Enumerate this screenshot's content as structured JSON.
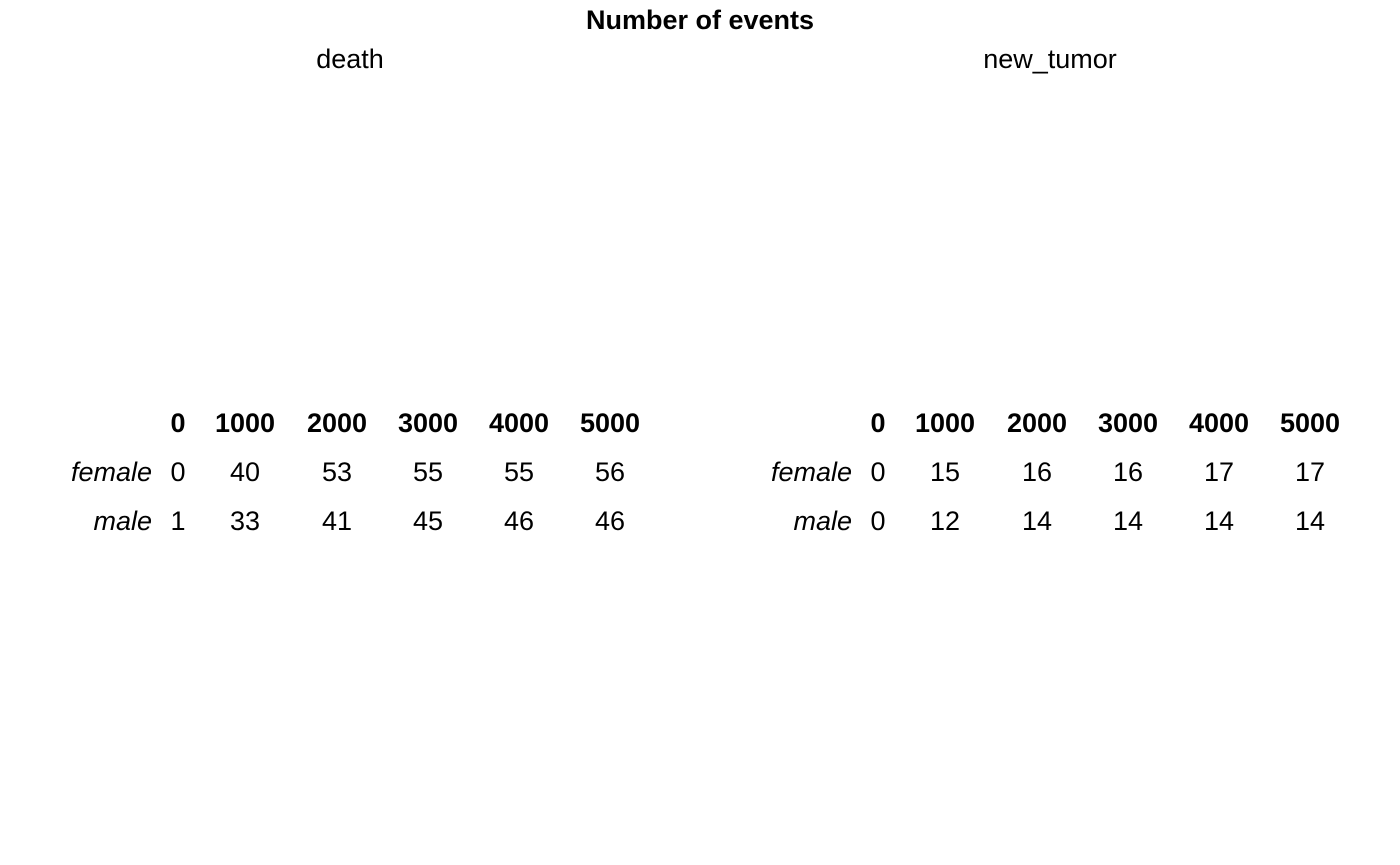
{
  "title": "Number of events",
  "chart_data": [
    {
      "type": "table",
      "title": "death",
      "columns": [
        "0",
        "1000",
        "2000",
        "3000",
        "4000",
        "5000"
      ],
      "rows": [
        {
          "label": "female",
          "values": [
            0,
            40,
            53,
            55,
            55,
            56
          ]
        },
        {
          "label": "male",
          "values": [
            1,
            33,
            41,
            45,
            46,
            46
          ]
        }
      ]
    },
    {
      "type": "table",
      "title": "new_tumor",
      "columns": [
        "0",
        "1000",
        "2000",
        "3000",
        "4000",
        "5000"
      ],
      "rows": [
        {
          "label": "female",
          "values": [
            0,
            15,
            16,
            16,
            17,
            17
          ]
        },
        {
          "label": "male",
          "values": [
            0,
            12,
            14,
            14,
            14,
            14
          ]
        }
      ]
    }
  ]
}
